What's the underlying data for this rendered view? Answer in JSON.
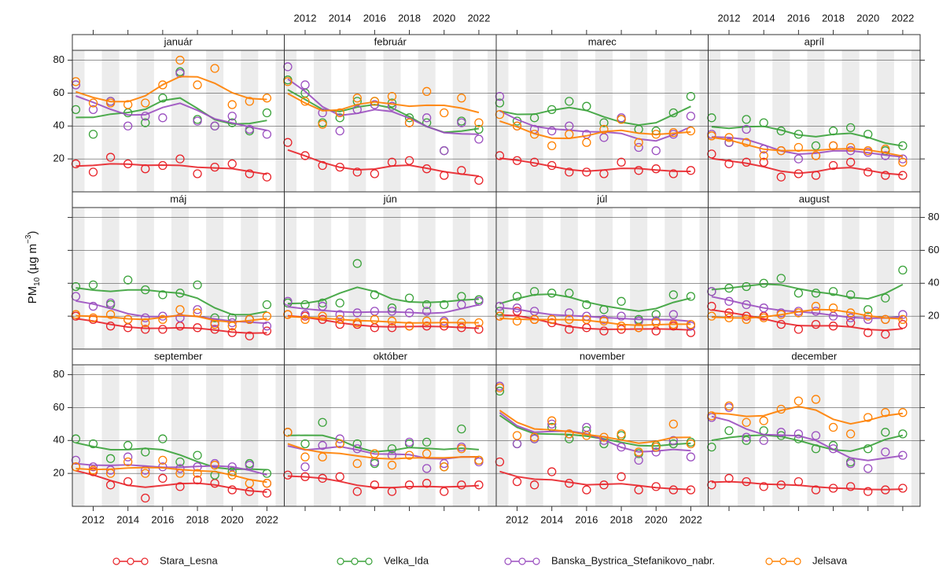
{
  "chart_data": {
    "type": "scatter",
    "y_label": [
      "PM",
      "10",
      " (µg m",
      "−3",
      ")"
    ],
    "x": [
      2011,
      2012,
      2013,
      2014,
      2015,
      2016,
      2017,
      2018,
      2019,
      2020,
      2021,
      2022
    ],
    "xlim": [
      2010.8,
      2023
    ],
    "xticks": [
      2012,
      2014,
      2016,
      2018,
      2020,
      2022
    ],
    "ylim": [
      0,
      86
    ],
    "yticks": [
      20,
      40,
      60,
      80
    ],
    "series": [
      {
        "name": "Stara_Lesna",
        "color": "#e8242a"
      },
      {
        "name": "Velka_Ida",
        "color": "#3aa23a"
      },
      {
        "name": "Banska_Bystrica_Stefanikovo_nabr.",
        "color": "#9b4fc0"
      },
      {
        "name": "Jelsava",
        "color": "#ff8000"
      }
    ],
    "panels": [
      {
        "title": "január",
        "series": [
          {
            "values": [
              17,
              12,
              21,
              17,
              14,
              16,
              20,
              11,
              15,
              17,
              11,
              9
            ]
          },
          {
            "values": [
              50,
              35,
              55,
              48,
              42,
              57,
              73,
              44,
              40,
              42,
              37,
              48
            ]
          },
          {
            "values": [
              65,
              50,
              55,
              40,
              46,
              45,
              72,
              43,
              40,
              46,
              38,
              35
            ]
          },
          {
            "values": [
              67,
              54,
              54,
              53,
              54,
              65,
              80,
              65,
              75,
              53,
              55,
              57
            ]
          }
        ]
      },
      {
        "title": "február",
        "series": [
          {
            "values": [
              30,
              22,
              16,
              15,
              12,
              11,
              18,
              19,
              14,
              10,
              13,
              7
            ]
          },
          {
            "values": [
              68,
              60,
              42,
              45,
              55,
              55,
              54,
              45,
              42,
              25,
              43,
              38
            ]
          },
          {
            "values": [
              76,
              65,
              48,
              37,
              50,
              53,
              52,
              42,
              45,
              25,
              42,
              32
            ]
          },
          {
            "values": [
              67,
              55,
              41,
              48,
              57,
              55,
              58,
              42,
              61,
              48,
              57,
              42
            ]
          }
        ]
      },
      {
        "title": "marec",
        "series": [
          {
            "values": [
              22,
              19,
              18,
              16,
              12,
              12,
              11,
              18,
              13,
              14,
              11,
              13
            ]
          },
          {
            "values": [
              54,
              43,
              45,
              50,
              55,
              52,
              42,
              44,
              38,
              37,
              48,
              58
            ]
          },
          {
            "values": [
              58,
              40,
              38,
              37,
              40,
              35,
              33,
              45,
              27,
              25,
              35,
              46
            ]
          },
          {
            "values": [
              47,
              40,
              35,
              28,
              35,
              30,
              38,
              44,
              30,
              35,
              36,
              37
            ]
          }
        ]
      },
      {
        "title": "apríl",
        "series": [
          {
            "values": [
              23,
              17,
              18,
              18,
              9,
              11,
              10,
              16,
              18,
              12,
              10,
              10
            ]
          },
          {
            "values": [
              45,
              30,
              44,
              42,
              37,
              35,
              28,
              37,
              39,
              35,
              25,
              28
            ]
          },
          {
            "values": [
              35,
              30,
              38,
              26,
              25,
              20,
              22,
              28,
              25,
              24,
              22,
              20
            ]
          },
          {
            "values": [
              34,
              33,
              30,
              22,
              25,
              27,
              22,
              28,
              27,
              25,
              26,
              18
            ]
          }
        ]
      },
      {
        "title": "máj",
        "series": [
          {
            "values": [
              20,
              18,
              14,
              13,
              12,
              12,
              14,
              13,
              12,
              10,
              8,
              11
            ]
          },
          {
            "values": [
              38,
              39,
              27,
              42,
              36,
              33,
              34,
              39,
              19,
              19,
              18,
              27
            ]
          },
          {
            "values": [
              32,
              26,
              28,
              18,
              19,
              20,
              19,
              24,
              16,
              16,
              18,
              14
            ]
          },
          {
            "values": [
              21,
              19,
              21,
              18,
              16,
              18,
              24,
              22,
              15,
              14,
              18,
              20
            ]
          }
        ]
      },
      {
        "title": "jún",
        "series": [
          {
            "values": [
              21,
              20,
              18,
              15,
              15,
              13,
              13,
              14,
              14,
              14,
              13,
              12
            ]
          },
          {
            "values": [
              28,
              27,
              28,
              28,
              52,
              33,
              25,
              31,
              27,
              27,
              32,
              30
            ]
          },
          {
            "values": [
              29,
              21,
              26,
              21,
              22,
              23,
              23,
              22,
              23,
              17,
              27,
              29
            ]
          },
          {
            "values": [
              21,
              18,
              20,
              18,
              16,
              18,
              17,
              14,
              17,
              16,
              16,
              16
            ]
          }
        ]
      },
      {
        "title": "júl",
        "series": [
          {
            "values": [
              20,
              23,
              18,
              16,
              12,
              13,
              11,
              12,
              13,
              11,
              14,
              10
            ]
          },
          {
            "values": [
              23,
              32,
              35,
              34,
              34,
              27,
              24,
              29,
              18,
              21,
              33,
              32
            ]
          },
          {
            "values": [
              26,
              25,
              23,
              18,
              22,
              20,
              18,
              20,
              17,
              17,
              21,
              14
            ]
          },
          {
            "values": [
              20,
              17,
              18,
              18,
              18,
              18,
              17,
              14,
              13,
              16,
              15,
              15
            ]
          }
        ]
      },
      {
        "title": "august",
        "series": [
          {
            "values": [
              26,
              22,
              20,
              20,
              15,
              12,
              15,
              14,
              16,
              10,
              9,
              15
            ]
          },
          {
            "values": [
              35,
              37,
              38,
              40,
              43,
              34,
              34,
              35,
              33,
              24,
              31,
              48
            ]
          },
          {
            "values": [
              35,
              29,
              27,
              25,
              22,
              23,
              23,
              20,
              19,
              18,
              18,
              21
            ]
          },
          {
            "values": [
              20,
              19,
              18,
              19,
              21,
              22,
              26,
              25,
              22,
              20,
              18,
              18
            ]
          }
        ]
      },
      {
        "title": "september",
        "series": [
          {
            "values": [
              24,
              21,
              13,
              15,
              5,
              17,
              12,
              16,
              14,
              10,
              9,
              8
            ]
          },
          {
            "values": [
              41,
              38,
              29,
              37,
              33,
              41,
              27,
              31,
              19,
              21,
              26,
              20
            ]
          },
          {
            "values": [
              28,
              24,
              22,
              30,
              22,
              24,
              23,
              24,
              26,
              24,
              25,
              14
            ]
          },
          {
            "values": [
              24,
              22,
              20,
              27,
              20,
              28,
              20,
              20,
              25,
              19,
              14,
              14
            ]
          }
        ]
      },
      {
        "title": "október",
        "series": [
          {
            "values": [
              19,
              18,
              17,
              18,
              9,
              13,
              9,
              13,
              14,
              9,
              13,
              13
            ]
          },
          {
            "values": [
              45,
              38,
              51,
              38,
              38,
              26,
              35,
              38,
              39,
              24,
              47,
              28
            ]
          },
          {
            "values": [
              45,
              24,
              37,
              41,
              35,
              27,
              31,
              39,
              23,
              26,
              36,
              27
            ]
          },
          {
            "values": [
              45,
              30,
              30,
              38,
              26,
              32,
              25,
              31,
              32,
              24,
              35,
              28
            ]
          }
        ]
      },
      {
        "title": "november",
        "series": [
          {
            "values": [
              27,
              15,
              13,
              21,
              14,
              10,
              13,
              18,
              10,
              12,
              10,
              10
            ]
          },
          {
            "values": [
              70,
              38,
              41,
              48,
              41,
              46,
              38,
              43,
              32,
              37,
              38,
              39
            ]
          },
          {
            "values": [
              73,
              38,
              41,
              50,
              44,
              48,
              40,
              36,
              28,
              33,
              40,
              30
            ]
          },
          {
            "values": [
              72,
              43,
              42,
              52,
              44,
              43,
              42,
              44,
              33,
              36,
              50,
              38
            ]
          }
        ]
      },
      {
        "title": "december",
        "series": [
          {
            "values": [
              13,
              17,
              15,
              12,
              13,
              15,
              10,
              11,
              12,
              9,
              10,
              11
            ]
          },
          {
            "values": [
              36,
              46,
              40,
              46,
              43,
              41,
              35,
              37,
              27,
              35,
              45,
              44
            ]
          },
          {
            "values": [
              54,
              60,
              42,
              40,
              45,
              44,
              43,
              35,
              26,
              23,
              33,
              31
            ]
          },
          {
            "values": [
              55,
              61,
              51,
              52,
              59,
              64,
              65,
              48,
              44,
              54,
              57,
              57
            ]
          }
        ]
      }
    ]
  }
}
